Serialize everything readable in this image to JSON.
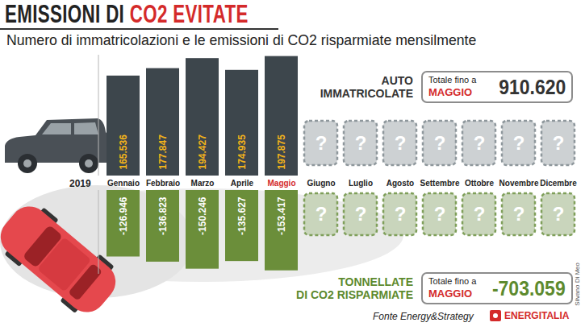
{
  "title": "EMISSIONI DI CO2 EVITATE",
  "title_highlight": "CO2 EVITATE",
  "subtitle": "Numero di immatricolazioni e le emissioni di CO2 risparmiate mensilmente",
  "year_label": "2019",
  "source": "Fonte Energy&Strategy",
  "brand": "ENERGITALIA",
  "credit": "Silvano Di Meo",
  "chart_data": [
    {
      "type": "bar",
      "title": "AUTO IMMATRICOLATE",
      "categories": [
        "Gennaio",
        "Febbraio",
        "Marzo",
        "Aprile",
        "Maggio",
        "Giugno",
        "Luglio",
        "Agosto",
        "Settembre",
        "Ottobre",
        "Novembre",
        "Dicembre"
      ],
      "values": [
        165536,
        177847,
        194427,
        174935,
        197875,
        null,
        null,
        null,
        null,
        null,
        null,
        null
      ],
      "value_labels": [
        "165.536",
        "177.847",
        "194.427",
        "174.935",
        "197.875",
        "?",
        "?",
        "?",
        "?",
        "?",
        "?",
        "?"
      ],
      "color": "#3d464c",
      "ylim": [
        0,
        200000
      ],
      "yticks": [],
      "grid": false,
      "tick_labels": "x",
      "data_labels": true,
      "total": {
        "label": "Totale fino a",
        "period": "MAGGIO",
        "value": 910620,
        "value_label": "910.620"
      }
    },
    {
      "type": "bar",
      "title": "TONNELLATE DI CO2 RISPARMIATE",
      "categories": [
        "Gennaio",
        "Febbraio",
        "Marzo",
        "Aprile",
        "Maggio",
        "Giugno",
        "Luglio",
        "Agosto",
        "Settembre",
        "Ottobre",
        "Novembre",
        "Dicembre"
      ],
      "values": [
        -126946,
        -136823,
        -150246,
        -135627,
        -153417,
        null,
        null,
        null,
        null,
        null,
        null,
        null
      ],
      "value_labels": [
        "-126.946",
        "-136.823",
        "-150.246",
        "-135.627",
        "-153.417",
        "?",
        "?",
        "?",
        "?",
        "?",
        "?",
        "?"
      ],
      "color": "#6b8e3a",
      "ylim": [
        -160000,
        0
      ],
      "yticks": [],
      "grid": false,
      "tick_labels": false,
      "data_labels": true,
      "total": {
        "label": "Totale fino a",
        "period": "MAGGIO",
        "value": -703059,
        "value_label": "-703.059"
      }
    }
  ]
}
